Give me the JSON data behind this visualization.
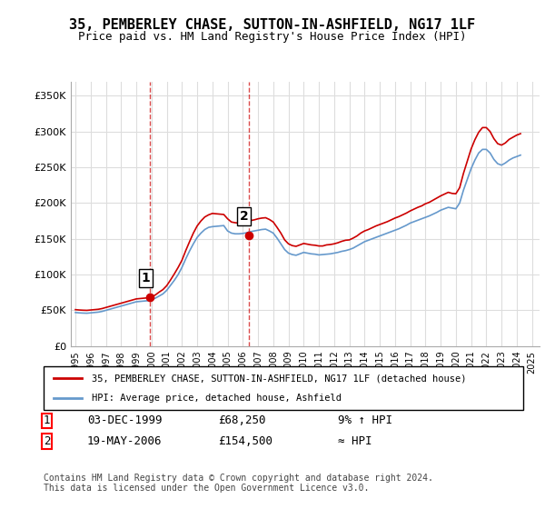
{
  "title": "35, PEMBERLEY CHASE, SUTTON-IN-ASHFIELD, NG17 1LF",
  "subtitle": "Price paid vs. HM Land Registry's House Price Index (HPI)",
  "ylabel_ticks": [
    "£0",
    "£50K",
    "£100K",
    "£150K",
    "£200K",
    "£250K",
    "£300K",
    "£350K"
  ],
  "ylim": [
    0,
    370000
  ],
  "xlim_start": 1995.0,
  "xlim_end": 2025.5,
  "sale1_x": 1999.92,
  "sale1_y": 68250,
  "sale1_label": "1",
  "sale1_date": "03-DEC-1999",
  "sale1_price": "£68,250",
  "sale1_hpi": "9% ↑ HPI",
  "sale2_x": 2006.38,
  "sale2_y": 154500,
  "sale2_label": "2",
  "sale2_date": "19-MAY-2006",
  "sale2_price": "£154,500",
  "sale2_hpi": "≈ HPI",
  "hpi_color": "#6699cc",
  "price_color": "#cc0000",
  "vline_color": "#cc0000",
  "grid_color": "#dddddd",
  "bg_color": "#ffffff",
  "legend_label_property": "35, PEMBERLEY CHASE, SUTTON-IN-ASHFIELD, NG17 1LF (detached house)",
  "legend_label_hpi": "HPI: Average price, detached house, Ashfield",
  "footer": "Contains HM Land Registry data © Crown copyright and database right 2024.\nThis data is licensed under the Open Government Licence v3.0.",
  "hpi_years": [
    1995.0,
    1995.25,
    1995.5,
    1995.75,
    1996.0,
    1996.25,
    1996.5,
    1996.75,
    1997.0,
    1997.25,
    1997.5,
    1997.75,
    1998.0,
    1998.25,
    1998.5,
    1998.75,
    1999.0,
    1999.25,
    1999.5,
    1999.75,
    2000.0,
    2000.25,
    2000.5,
    2000.75,
    2001.0,
    2001.25,
    2001.5,
    2001.75,
    2002.0,
    2002.25,
    2002.5,
    2002.75,
    2003.0,
    2003.25,
    2003.5,
    2003.75,
    2004.0,
    2004.25,
    2004.5,
    2004.75,
    2005.0,
    2005.25,
    2005.5,
    2005.75,
    2006.0,
    2006.25,
    2006.5,
    2006.75,
    2007.0,
    2007.25,
    2007.5,
    2007.75,
    2008.0,
    2008.25,
    2008.5,
    2008.75,
    2009.0,
    2009.25,
    2009.5,
    2009.75,
    2010.0,
    2010.25,
    2010.5,
    2010.75,
    2011.0,
    2011.25,
    2011.5,
    2011.75,
    2012.0,
    2012.25,
    2012.5,
    2012.75,
    2013.0,
    2013.25,
    2013.5,
    2013.75,
    2014.0,
    2014.25,
    2014.5,
    2014.75,
    2015.0,
    2015.25,
    2015.5,
    2015.75,
    2016.0,
    2016.25,
    2016.5,
    2016.75,
    2017.0,
    2017.25,
    2017.5,
    2017.75,
    2018.0,
    2018.25,
    2018.5,
    2018.75,
    2019.0,
    2019.25,
    2019.5,
    2019.75,
    2020.0,
    2020.25,
    2020.5,
    2020.75,
    2021.0,
    2021.25,
    2021.5,
    2021.75,
    2022.0,
    2022.25,
    2022.5,
    2022.75,
    2023.0,
    2023.25,
    2023.5,
    2023.75,
    2024.0,
    2024.25
  ],
  "hpi_values": [
    47000,
    46500,
    46200,
    46000,
    46500,
    47000,
    47500,
    48500,
    50000,
    51500,
    53000,
    54500,
    56000,
    57500,
    59000,
    60500,
    62000,
    62500,
    63000,
    63500,
    65000,
    67000,
    70000,
    73000,
    78000,
    85000,
    92000,
    100000,
    110000,
    122000,
    133000,
    143000,
    152000,
    158000,
    163000,
    166000,
    167000,
    167500,
    168000,
    168500,
    161000,
    158000,
    157000,
    157000,
    157500,
    158500,
    160000,
    161000,
    162000,
    163000,
    163500,
    161000,
    158000,
    151000,
    143000,
    135000,
    130000,
    128000,
    127000,
    129000,
    131000,
    130000,
    129000,
    128500,
    127500,
    128000,
    128500,
    129000,
    130000,
    131000,
    132500,
    133500,
    135000,
    137000,
    140000,
    143000,
    146000,
    148000,
    150000,
    152000,
    154000,
    156000,
    158000,
    160000,
    162000,
    164000,
    166500,
    169000,
    172000,
    174000,
    176000,
    178000,
    180000,
    182000,
    184500,
    187000,
    190000,
    192000,
    194000,
    193000,
    192000,
    200000,
    218000,
    233000,
    248000,
    260000,
    270000,
    275000,
    275000,
    270000,
    261000,
    255000,
    253000,
    256000,
    260000,
    263000,
    265000,
    267000
  ],
  "prop_years": [
    1995.0,
    1995.25,
    1995.5,
    1995.75,
    1996.0,
    1996.25,
    1996.5,
    1996.75,
    1997.0,
    1997.25,
    1997.5,
    1997.75,
    1998.0,
    1998.25,
    1998.5,
    1998.75,
    1999.0,
    1999.25,
    1999.5,
    1999.75,
    2000.0,
    2000.25,
    2000.5,
    2000.75,
    2001.0,
    2001.25,
    2001.5,
    2001.75,
    2002.0,
    2002.25,
    2002.5,
    2002.75,
    2003.0,
    2003.25,
    2003.5,
    2003.75,
    2004.0,
    2004.25,
    2004.5,
    2004.75,
    2005.0,
    2005.25,
    2005.5,
    2005.75,
    2006.0,
    2006.25,
    2006.5,
    2006.75,
    2007.0,
    2007.25,
    2007.5,
    2007.75,
    2008.0,
    2008.25,
    2008.5,
    2008.75,
    2009.0,
    2009.25,
    2009.5,
    2009.75,
    2010.0,
    2010.25,
    2010.5,
    2010.75,
    2011.0,
    2011.25,
    2011.5,
    2011.75,
    2012.0,
    2012.25,
    2012.5,
    2012.75,
    2013.0,
    2013.25,
    2013.5,
    2013.75,
    2014.0,
    2014.25,
    2014.5,
    2014.75,
    2015.0,
    2015.25,
    2015.5,
    2015.75,
    2016.0,
    2016.25,
    2016.5,
    2016.75,
    2017.0,
    2017.25,
    2017.5,
    2017.75,
    2018.0,
    2018.25,
    2018.5,
    2018.75,
    2019.0,
    2019.25,
    2019.5,
    2019.75,
    2020.0,
    2020.25,
    2020.5,
    2020.75,
    2021.0,
    2021.25,
    2021.5,
    2021.75,
    2022.0,
    2022.25,
    2022.5,
    2022.75,
    2023.0,
    2023.25,
    2023.5,
    2023.75,
    2024.0,
    2024.25
  ],
  "prop_values": [
    51000,
    50500,
    50200,
    50000,
    50500,
    51000,
    51500,
    52500,
    54000,
    55500,
    57000,
    58500,
    60000,
    61500,
    63000,
    64500,
    66000,
    66500,
    67000,
    67500,
    69000,
    71500,
    75500,
    79000,
    84500,
    92500,
    101000,
    110000,
    120000,
    133500,
    146000,
    158000,
    168000,
    175000,
    180500,
    183500,
    185500,
    185000,
    184500,
    184000,
    178000,
    173500,
    172500,
    172000,
    172500,
    174000,
    175500,
    176500,
    178000,
    179000,
    179500,
    177000,
    173500,
    166000,
    158000,
    148500,
    143000,
    140500,
    139500,
    141500,
    143500,
    142500,
    141500,
    141000,
    140000,
    140000,
    141500,
    142000,
    143000,
    144500,
    146500,
    148000,
    148500,
    151000,
    154000,
    158000,
    161000,
    163000,
    165500,
    168000,
    170000,
    172000,
    174000,
    176500,
    179000,
    181000,
    183500,
    186000,
    189000,
    191500,
    194000,
    196000,
    199000,
    201000,
    204000,
    207000,
    210000,
    212500,
    215000,
    213500,
    213000,
    221500,
    241500,
    258500,
    275500,
    288500,
    299000,
    305500,
    305500,
    300000,
    290000,
    283000,
    281000,
    284000,
    289000,
    292000,
    295000,
    297000
  ]
}
